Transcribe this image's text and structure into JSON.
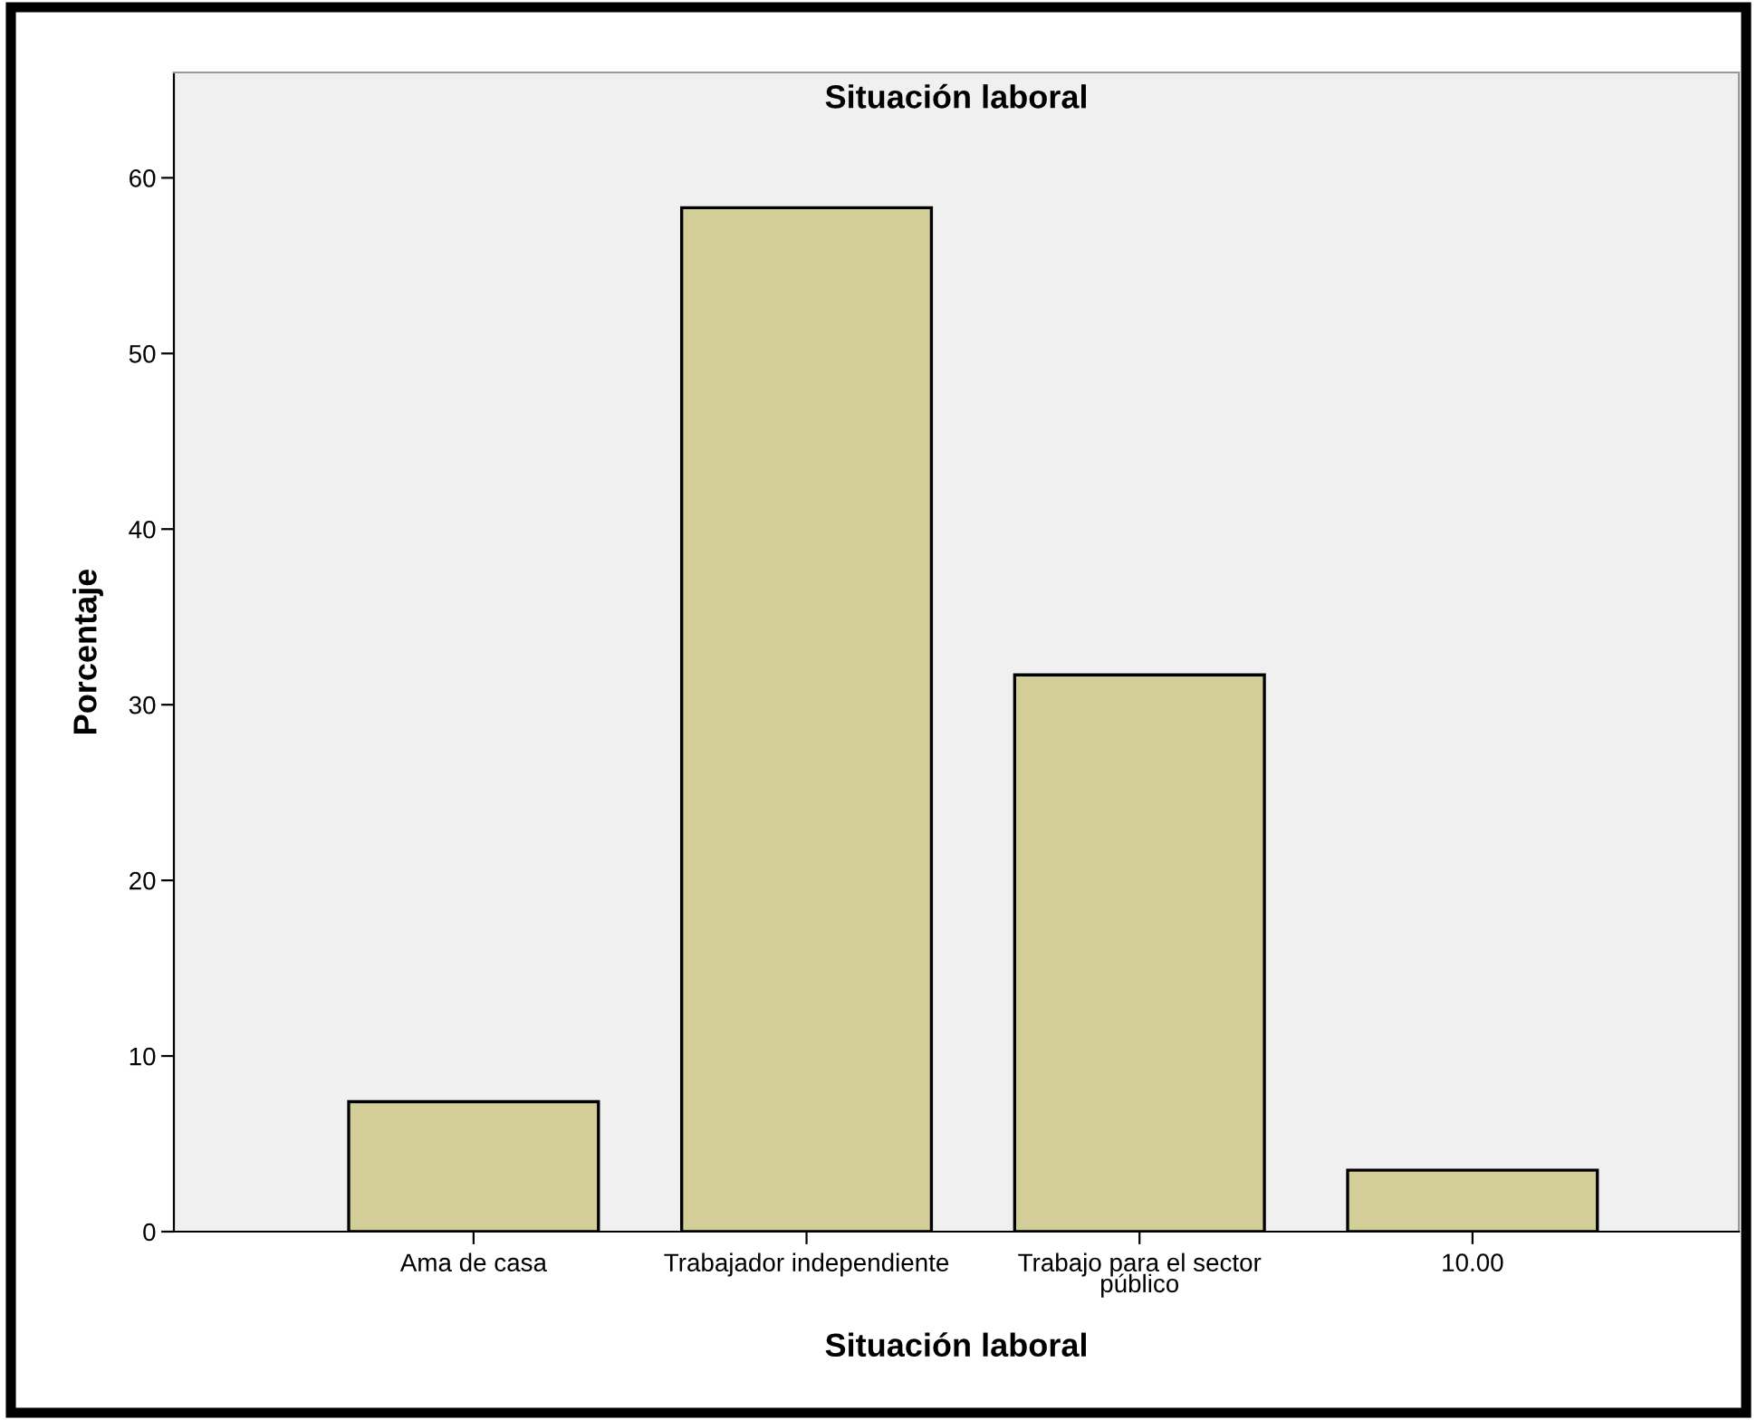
{
  "chart_data": {
    "type": "bar",
    "title": "Situación laboral",
    "xlabel": "Situación laboral",
    "ylabel": "Porcentaje",
    "categories": [
      "Ama de casa",
      "Trabajador independiente",
      "Trabajo para el sector\npúblico",
      "10.00"
    ],
    "values": [
      7.4,
      58.3,
      31.7,
      3.5
    ],
    "color": "#d3ce98",
    "ylim": [
      0,
      66
    ],
    "yticks": [
      0,
      10,
      20,
      30,
      40,
      50,
      60
    ],
    "grid": false,
    "legend": false
  }
}
